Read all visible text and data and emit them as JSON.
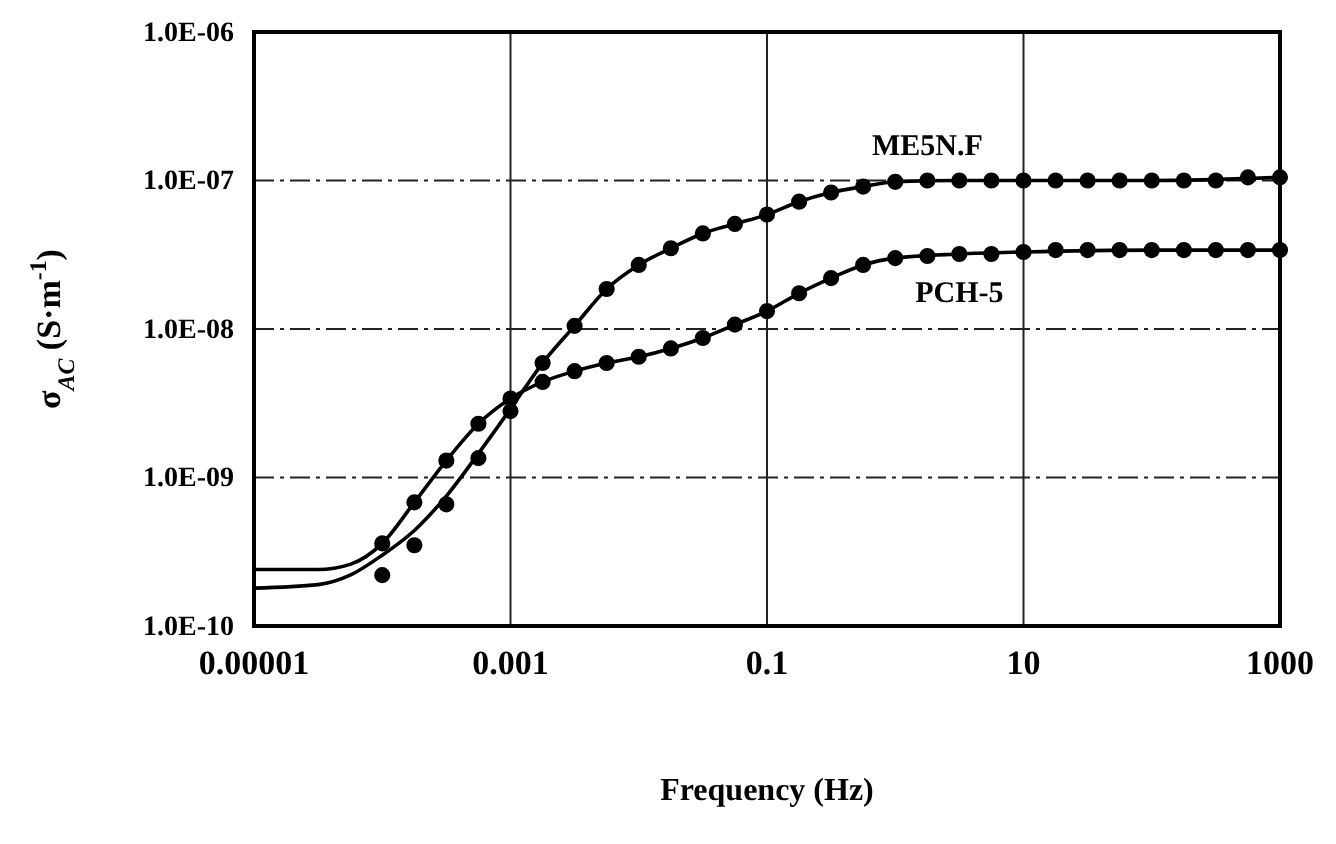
{
  "chart_data": {
    "type": "scatter",
    "xlabel": "Frequency (Hz)",
    "ylabel": "σ$_{AC}$ (S·m$^{-1}$)",
    "log": "xy",
    "grid": true,
    "xlim": [
      1e-05,
      1000
    ],
    "xticks": [
      {
        "value": 1e-05,
        "label": "0.00001"
      },
      0.001,
      0.1,
      10,
      1000
    ],
    "ylim": [
      1e-10,
      1e-06
    ],
    "yticks": [
      {
        "value": 1e-10,
        "label": "1.0E-10"
      },
      {
        "value": 1e-09,
        "label": "1.0E-09"
      },
      {
        "value": 1e-08,
        "label": "1.0E-08"
      },
      {
        "value": 1e-07,
        "label": "1.0E-07"
      },
      {
        "value": 1e-06,
        "label": "1.0E-06"
      }
    ],
    "x": [
      0.0001,
      0.000178,
      0.000316,
      0.000562,
      0.001,
      0.00178,
      0.00316,
      0.00562,
      0.01,
      0.0178,
      0.0316,
      0.0562,
      0.1,
      0.178,
      0.316,
      0.562,
      1,
      1.78,
      3.16,
      5.62,
      10,
      17.8,
      31.6,
      56.2,
      100,
      178,
      316,
      562,
      1000
    ],
    "series": [
      {
        "name": "ME5N.F",
        "color": "#000000",
        "marker": "circle",
        "values": [
          2.2e-10,
          3.5e-10,
          6.6e-10,
          1.35e-09,
          2.8e-09,
          5.9e-09,
          1.05e-08,
          1.86e-08,
          2.7e-08,
          3.5e-08,
          4.4e-08,
          5.1e-08,
          5.9e-08,
          7.2e-08,
          8.3e-08,
          9.1e-08,
          9.8e-08,
          1e-07,
          1e-07,
          1e-07,
          1e-07,
          1e-07,
          1e-07,
          1e-07,
          1e-07,
          1e-07,
          1e-07,
          1.05e-07,
          1.05e-07
        ]
      },
      {
        "name": "PCH-5",
        "color": "#000000",
        "marker": "circle",
        "values": [
          3.6e-10,
          6.8e-10,
          1.3e-09,
          2.3e-09,
          3.4e-09,
          4.4e-09,
          5.2e-09,
          5.9e-09,
          6.5e-09,
          7.4e-09,
          8.7e-09,
          1.07e-08,
          1.32e-08,
          1.74e-08,
          2.2e-08,
          2.7e-08,
          3e-08,
          3.1e-08,
          3.2e-08,
          3.2e-08,
          3.3e-08,
          3.4e-08,
          3.4e-08,
          3.4e-08,
          3.4e-08,
          3.4e-08,
          3.4e-08,
          3.4e-08,
          3.4e-08
        ]
      },
      {
        "type": "line",
        "marker": "none",
        "color": "#000000",
        "x": [
          1e-05,
          3.16e-05,
          5.62e-05,
          0.0001,
          0.000178,
          0.000316,
          0.000562,
          0.001,
          0.00178,
          0.00316,
          0.00562,
          0.01,
          0.0178,
          0.0316,
          0.0562,
          0.1,
          0.178,
          0.316,
          0.562,
          1,
          3.16,
          10,
          100,
          1000
        ],
        "values": [
          1.8e-10,
          1.9e-10,
          2.2e-10,
          3e-10,
          4.4e-10,
          7.5e-10,
          1.45e-09,
          2.9e-09,
          5.9e-09,
          1.05e-08,
          1.86e-08,
          2.7e-08,
          3.5e-08,
          4.4e-08,
          5.1e-08,
          5.9e-08,
          7.2e-08,
          8.3e-08,
          9.1e-08,
          9.8e-08,
          1e-07,
          1e-07,
          1e-07,
          1.05e-07
        ]
      },
      {
        "type": "line",
        "marker": "none",
        "color": "#000000",
        "x": [
          1e-05,
          3.16e-05,
          5.62e-05,
          0.0001,
          0.000178,
          0.000316,
          0.000562,
          0.001,
          0.00178,
          0.00316,
          0.00562,
          0.01,
          0.0178,
          0.0316,
          0.0562,
          0.1,
          0.178,
          0.316,
          0.562,
          1,
          3.16,
          10,
          100,
          1000
        ],
        "values": [
          2.4e-10,
          2.4e-10,
          2.6e-10,
          3.6e-10,
          6.8e-10,
          1.3e-09,
          2.3e-09,
          3.4e-09,
          4.4e-09,
          5.2e-09,
          5.9e-09,
          6.5e-09,
          7.4e-09,
          8.7e-09,
          1.07e-08,
          1.32e-08,
          1.74e-08,
          2.2e-08,
          2.7e-08,
          3e-08,
          3.2e-08,
          3.3e-08,
          3.4e-08,
          3.4e-08
        ]
      }
    ]
  }
}
